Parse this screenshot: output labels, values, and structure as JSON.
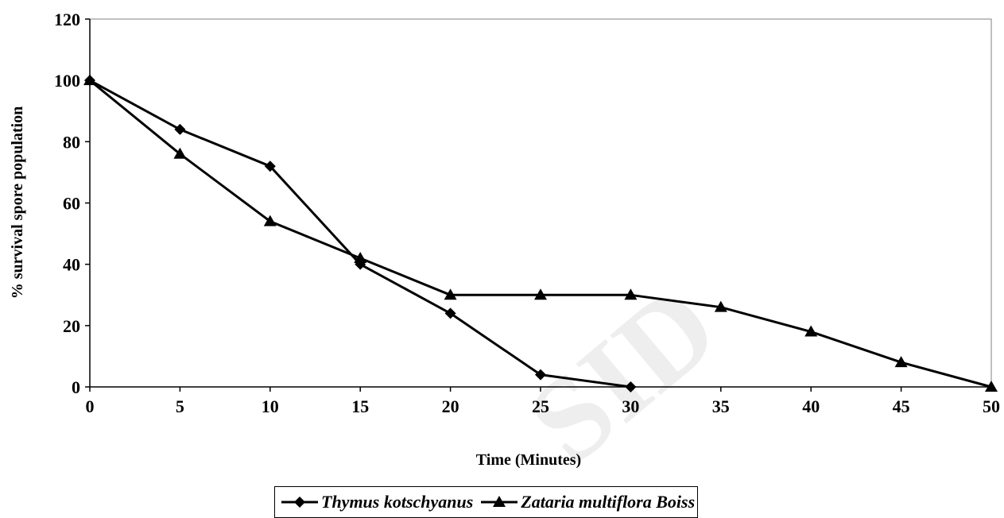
{
  "chart_data": {
    "type": "line",
    "title": "",
    "xlabel": "Time (Minutes)",
    "ylabel": "% survival spore population",
    "xlim": [
      0,
      50
    ],
    "ylim": [
      0,
      120
    ],
    "x_ticks": [
      0,
      5,
      10,
      15,
      20,
      25,
      30,
      35,
      40,
      45,
      50
    ],
    "y_ticks": [
      0,
      20,
      40,
      60,
      80,
      100,
      120
    ],
    "grid": false,
    "legend_position": "bottom",
    "watermark": "SID",
    "series": [
      {
        "name": "Thymus kotschyanus",
        "marker": "diamond",
        "color": "#000000",
        "x": [
          0,
          5,
          10,
          15,
          20,
          25,
          30
        ],
        "y": [
          100,
          84,
          72,
          40,
          24,
          4,
          0
        ]
      },
      {
        "name": "Zataria multiflora Boiss",
        "marker": "triangle",
        "color": "#000000",
        "x": [
          0,
          5,
          10,
          15,
          20,
          25,
          30,
          35,
          40,
          45,
          50
        ],
        "y": [
          100,
          76,
          54,
          42,
          30,
          30,
          30,
          26,
          18,
          8,
          0
        ]
      }
    ]
  }
}
